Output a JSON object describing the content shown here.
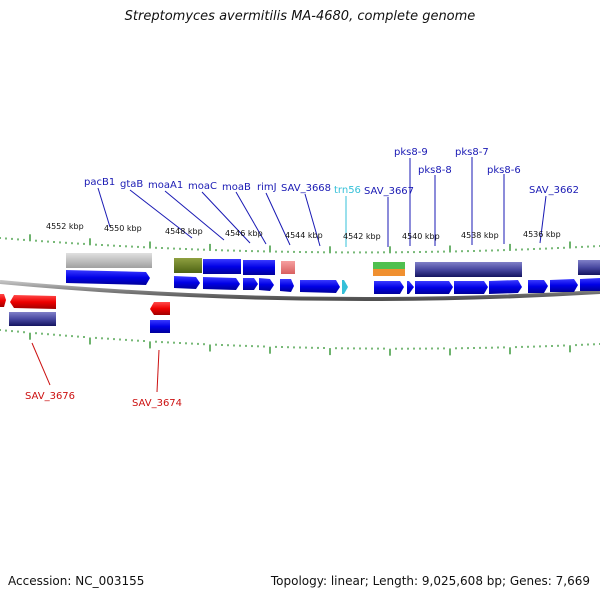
{
  "title": "Streptomyces avermitilis MA-4680, complete genome",
  "footer": {
    "accession": "Accession: NC_003155",
    "summary": "Topology: linear; Length: 9,025,608 bp; Genes: 7,669"
  },
  "colors": {
    "forward_label": "#1a1ab4",
    "reverse_label": "#cc1111",
    "trna_label": "#35c0d8",
    "tick": "#1e8a1e",
    "backbone": "#808080"
  },
  "scale_labels": [
    "4552 kbp",
    "4550 kbp",
    "4548 kbp",
    "4546 kbp",
    "4544 kbp",
    "4542 kbp",
    "4540 kbp",
    "4538 kbp",
    "4536 kbp"
  ],
  "forward_labels": [
    {
      "text": "pacB1",
      "kind": "gene"
    },
    {
      "text": "gtaB",
      "kind": "gene"
    },
    {
      "text": "moaA1",
      "kind": "gene"
    },
    {
      "text": "moaC",
      "kind": "gene"
    },
    {
      "text": "moaB",
      "kind": "gene"
    },
    {
      "text": "rimJ",
      "kind": "gene"
    },
    {
      "text": "SAV_3668",
      "kind": "gene"
    },
    {
      "text": "trn56",
      "kind": "trna"
    },
    {
      "text": "SAV_3667",
      "kind": "gene"
    },
    {
      "text": "pks8-9",
      "kind": "gene"
    },
    {
      "text": "pks8-8",
      "kind": "gene"
    },
    {
      "text": "pks8-7",
      "kind": "gene"
    },
    {
      "text": "pks8-6",
      "kind": "gene"
    },
    {
      "text": "SAV_3662",
      "kind": "gene"
    }
  ],
  "reverse_labels": [
    {
      "text": "SAV_3676"
    },
    {
      "text": "SAV_3674"
    }
  ]
}
